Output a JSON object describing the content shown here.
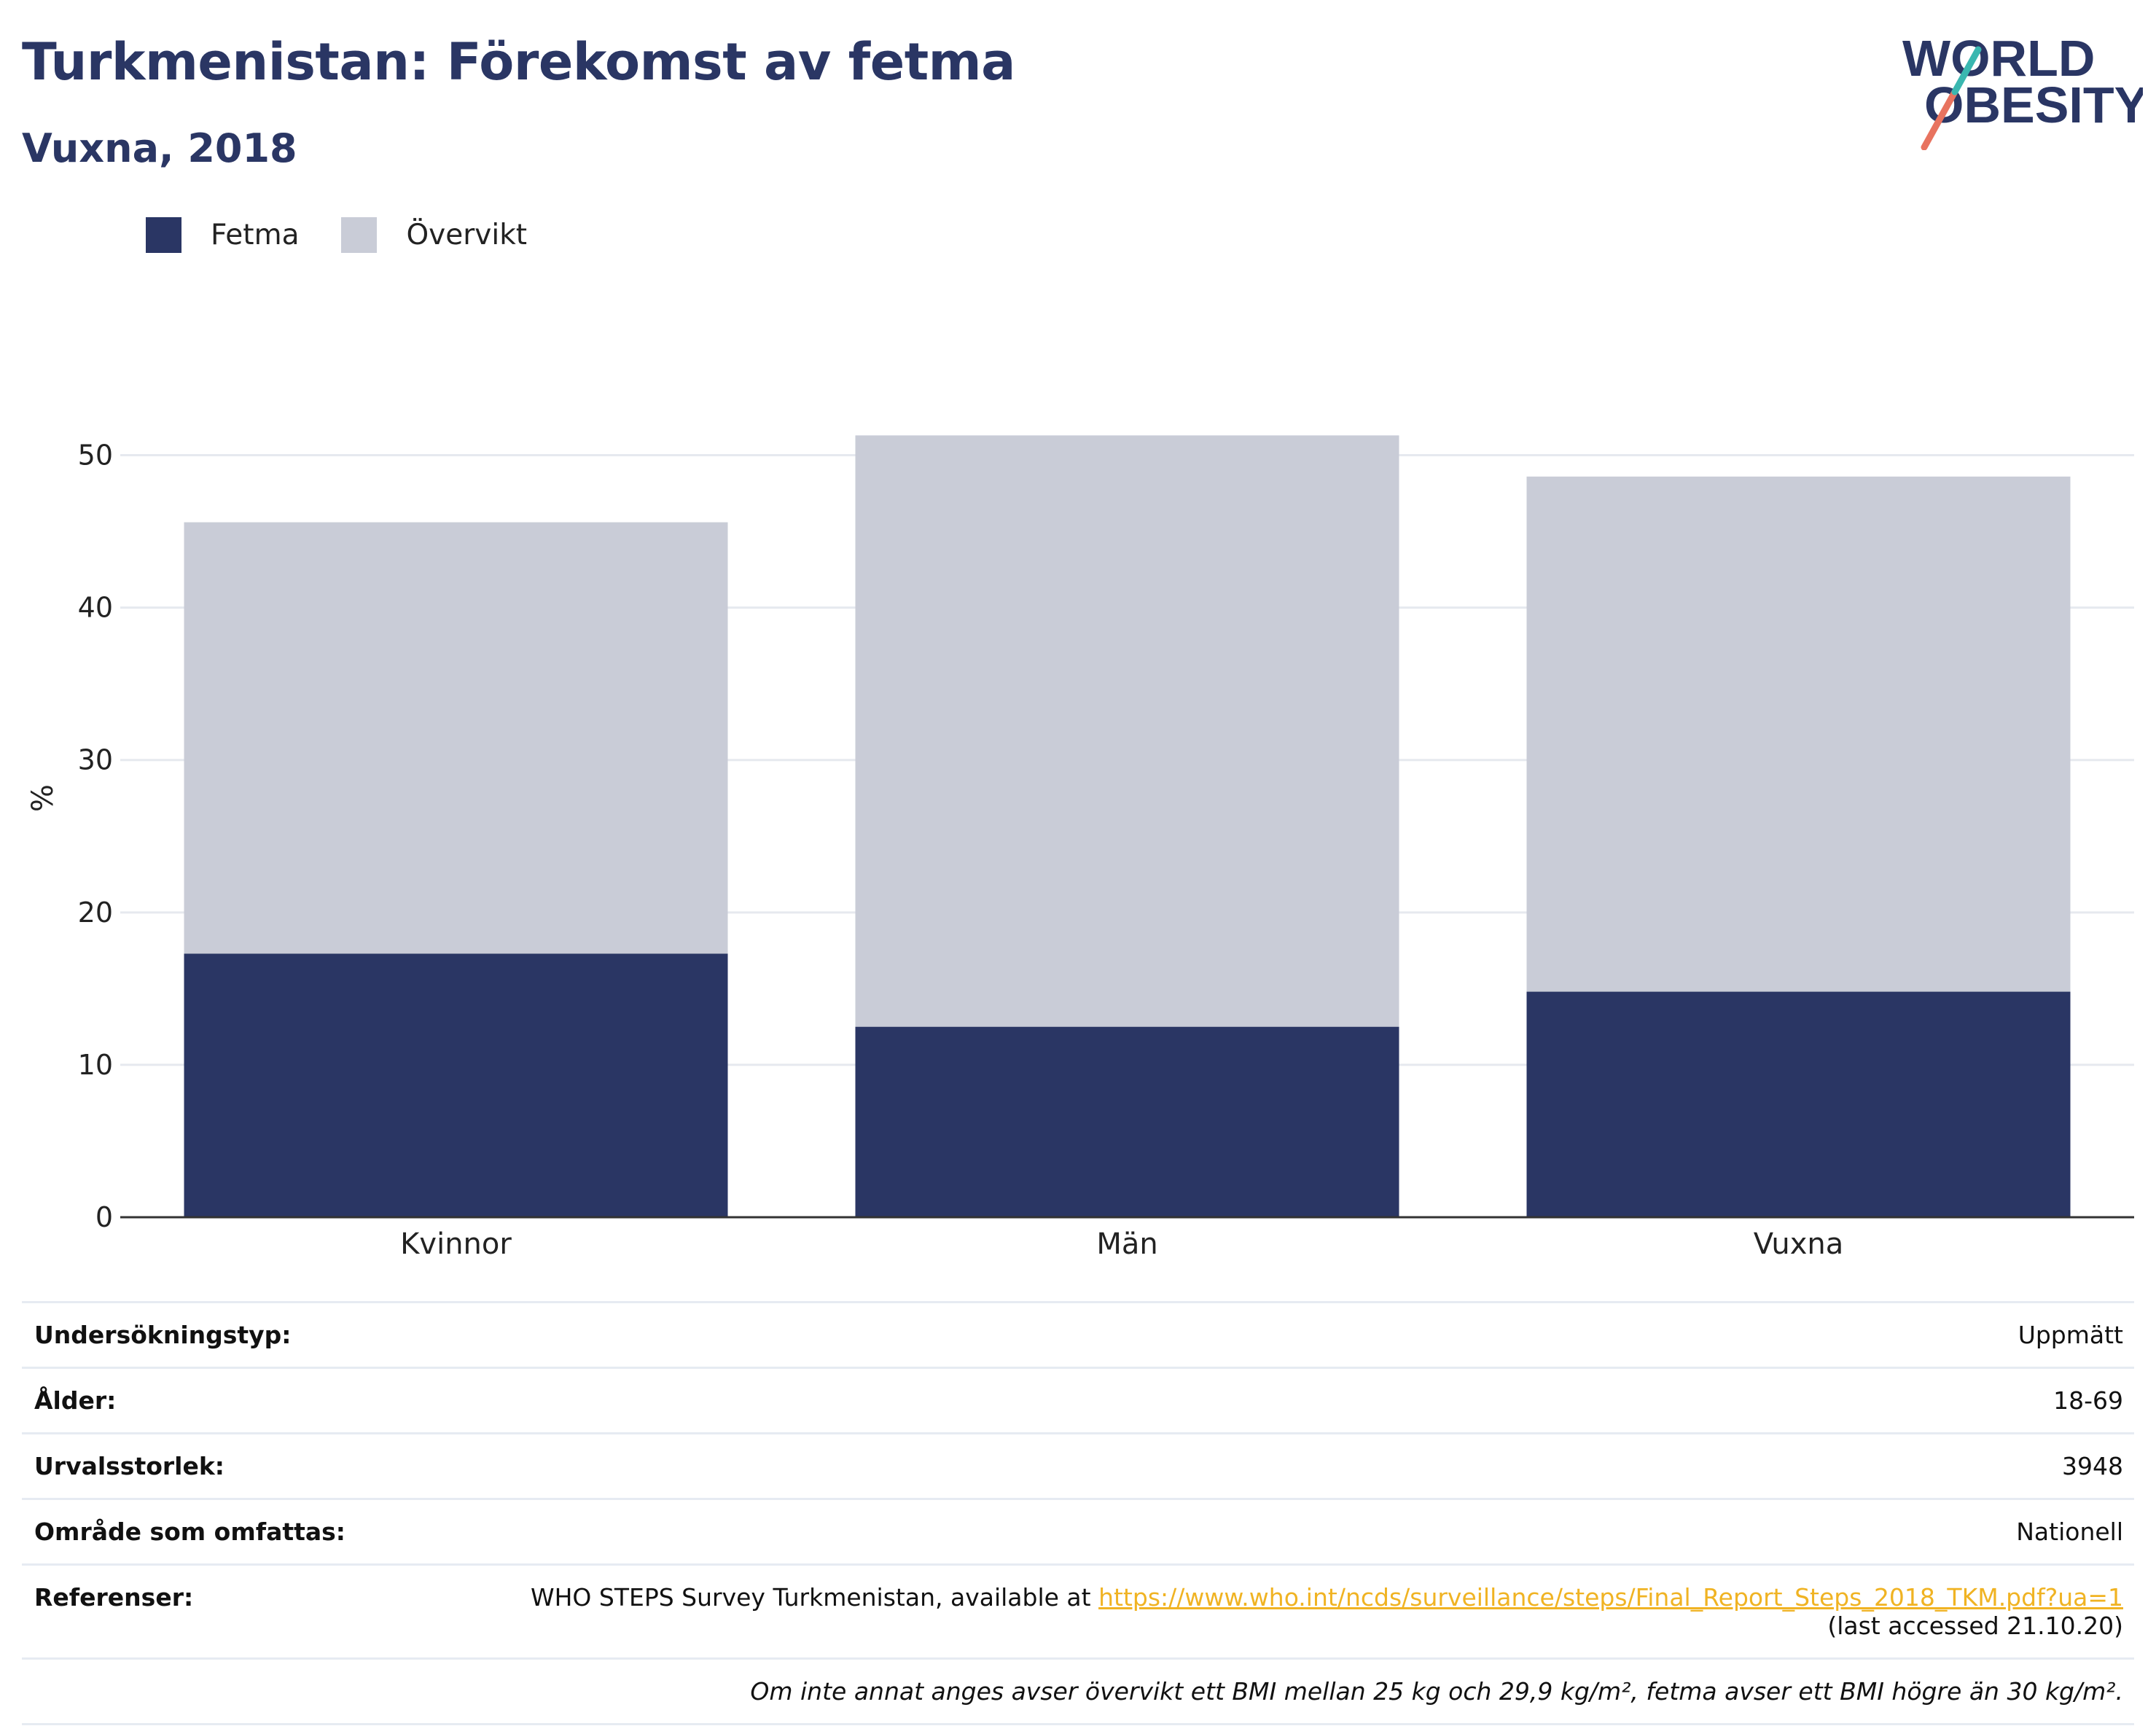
{
  "header": {
    "title": "Turkmenistan: Förekomst av fetma",
    "subtitle": "Vuxna, 2018"
  },
  "logo": {
    "line1": "WORLD",
    "line2": "OBESITY"
  },
  "legend": [
    {
      "label": "Fetma",
      "color": "#2a3664"
    },
    {
      "label": "Övervikt",
      "color": "#c9ccd7"
    }
  ],
  "chart_data": {
    "type": "bar",
    "stacked": true,
    "categories": [
      "Kvinnor",
      "Män",
      "Vuxna"
    ],
    "series": [
      {
        "name": "Fetma",
        "color": "#2a3664",
        "values": [
          17.3,
          12.5,
          14.8
        ]
      },
      {
        "name": "Övervikt",
        "color": "#c9ccd7",
        "values": [
          28.3,
          38.8,
          33.8
        ]
      }
    ],
    "ylabel": "%",
    "ylim": [
      0,
      55
    ],
    "yticks": [
      0,
      10,
      20,
      30,
      40,
      50
    ],
    "grid": true,
    "legend_position": "top-left"
  },
  "info": {
    "survey_type_label": "Undersökningstyp:",
    "survey_type_value": "Uppmätt",
    "age_label": "Ålder:",
    "age_value": "18-69",
    "sample_label": "Urvalsstorlek:",
    "sample_value": "3948",
    "area_label": "Område som omfattas:",
    "area_value": "Nationell",
    "ref_label": "Referenser:",
    "ref_text": "WHO STEPS Survey Turkmenistan, available at",
    "ref_link": "https://www.who.int/ncds/surveillance/steps/Final_Report_Steps_2018_TKM.pdf?ua=1",
    "ref_accessed": "(last accessed 21.10.20)",
    "note": "Om inte annat anges avser övervikt ett BMI mellan 25 kg och 29,9 kg/m², fetma avser ett BMI högre än 30 kg/m²."
  }
}
